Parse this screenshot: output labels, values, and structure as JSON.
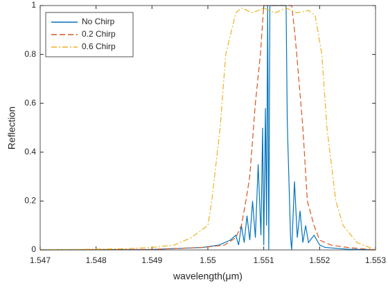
{
  "chart_data": {
    "type": "line",
    "xlabel": "wavelength(μm)",
    "ylabel": "Reflection",
    "xlim": [
      1.547,
      1.553
    ],
    "ylim": [
      0,
      1
    ],
    "xticks": [
      1.547,
      1.548,
      1.549,
      1.55,
      1.551,
      1.552,
      1.553
    ],
    "yticks": [
      0,
      0.2,
      0.4,
      0.6,
      0.8,
      1
    ],
    "legend": "upper-left",
    "series": [
      {
        "name": "No Chirp",
        "color": "#0072bd",
        "linestyle": "solid",
        "x": [
          1.547,
          1.549,
          1.5499,
          1.5502,
          1.5504,
          1.5505,
          1.55055,
          1.5506,
          1.55065,
          1.5507,
          1.55075,
          1.5508,
          1.55085,
          1.5509,
          1.55095,
          1.55098,
          1.551,
          1.55103,
          1.55105,
          1.55107,
          1.55109,
          1.55111,
          1.5514,
          1.55142,
          1.55143,
          1.55148,
          1.5515,
          1.55155,
          1.5516,
          1.55165,
          1.5517,
          1.55175,
          1.5518,
          1.5519,
          1.552,
          1.5521,
          1.5525,
          1.553
        ],
        "values": [
          0,
          0.002,
          0.01,
          0.02,
          0.04,
          0.06,
          0.02,
          0.1,
          0.03,
          0.14,
          0.04,
          0.2,
          0.05,
          0.35,
          0.06,
          0.5,
          0.02,
          0.58,
          0.1,
          1,
          0,
          1,
          1,
          0.54,
          0.45,
          0.05,
          0,
          0.28,
          0.05,
          0.16,
          0.03,
          0.1,
          0.03,
          0.06,
          0.02,
          0.01,
          0.003,
          0
        ]
      },
      {
        "name": "0.2 Chirp",
        "color": "#d95319",
        "linestyle": "dashed",
        "x": [
          1.547,
          1.549,
          1.5499,
          1.5503,
          1.5505,
          1.5506,
          1.55068,
          1.55075,
          1.55085,
          1.55094,
          1.551,
          1.5515,
          1.55155,
          1.55159,
          1.5517,
          1.55178,
          1.5519,
          1.552,
          1.5522,
          1.5525,
          1.553
        ],
        "values": [
          0,
          0.002,
          0.01,
          0.02,
          0.05,
          0.1,
          0.2,
          0.3,
          0.6,
          0.8,
          1,
          1,
          0.9,
          0.8,
          0.5,
          0.2,
          0.1,
          0.04,
          0.02,
          0.01,
          0
        ]
      },
      {
        "name": "0.6 Chirp",
        "color": "#edb120",
        "linestyle": "dashdot",
        "x": [
          1.547,
          1.5485,
          1.549,
          1.5494,
          1.5497,
          1.55,
          1.55007,
          1.55022,
          1.55032,
          1.5505,
          1.5506,
          1.5508,
          1.551,
          1.5512,
          1.5514,
          1.5516,
          1.5518,
          1.55192,
          1.55204,
          1.55213,
          1.55229,
          1.55242,
          1.55267,
          1.553
        ],
        "values": [
          0,
          0.005,
          0.01,
          0.02,
          0.05,
          0.1,
          0.2,
          0.5,
          0.8,
          0.97,
          0.99,
          0.97,
          0.99,
          0.97,
          0.99,
          0.97,
          0.98,
          0.96,
          0.8,
          0.5,
          0.2,
          0.1,
          0.03,
          0
        ]
      }
    ]
  }
}
